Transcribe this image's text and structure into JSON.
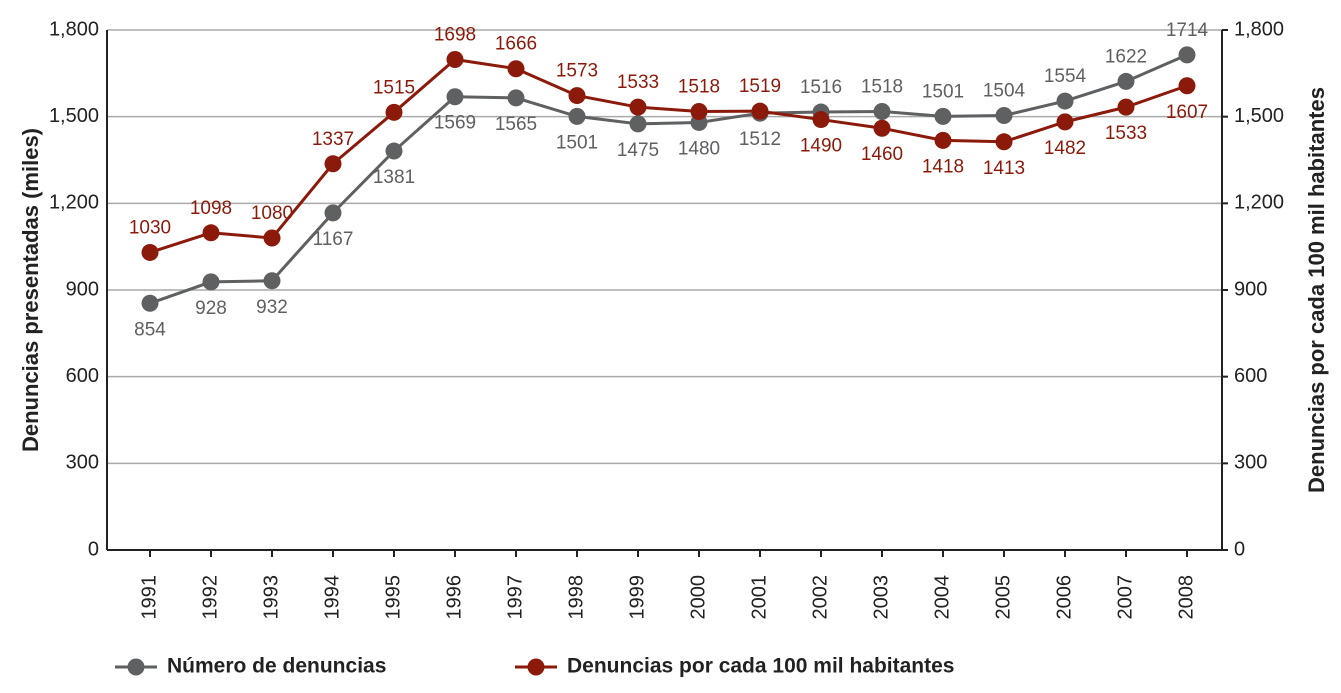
{
  "chart_data": {
    "type": "line",
    "categories": [
      "1991",
      "1992",
      "1993",
      "1994",
      "1995",
      "1996",
      "1997",
      "1998",
      "1999",
      "2000",
      "2001",
      "2002",
      "2003",
      "2004",
      "2005",
      "2006",
      "2007",
      "2008"
    ],
    "ylabel": "Denuncias presentadas (miles)",
    "y2label": "Denuncias por cada 100 mil habitantes",
    "ylim": [
      0,
      1800
    ],
    "yticks": [
      0,
      300,
      600,
      900,
      {
        "value": 1200,
        "label": "1,200"
      },
      {
        "value": 1500,
        "label": "1,500"
      },
      {
        "value": 1800,
        "label": "1,800"
      }
    ],
    "y2lim": [
      0,
      1800
    ],
    "y2ticks": [
      0,
      300,
      600,
      900,
      {
        "value": 1200,
        "label": "1,200"
      },
      {
        "value": 1500,
        "label": "1,500"
      },
      {
        "value": 1800,
        "label": "1,800"
      }
    ],
    "grid": true,
    "legend": "bottom",
    "series": [
      {
        "name": "Número de denuncias",
        "color": "#5f6062",
        "values": [
          854,
          928,
          932,
          1167,
          1381,
          1569,
          1565,
          1501,
          1475,
          1480,
          1512,
          1516,
          1518,
          1501,
          1504,
          1554,
          1622,
          1714
        ]
      },
      {
        "name": "Denuncias por cada 100 mil habitantes",
        "color": "#8b1a0a",
        "axis": "y2",
        "values": [
          1030,
          1098,
          1080,
          1337,
          1515,
          1698,
          1666,
          1573,
          1533,
          1518,
          1519,
          1490,
          1460,
          1418,
          1413,
          1482,
          1533,
          1607
        ]
      }
    ]
  }
}
